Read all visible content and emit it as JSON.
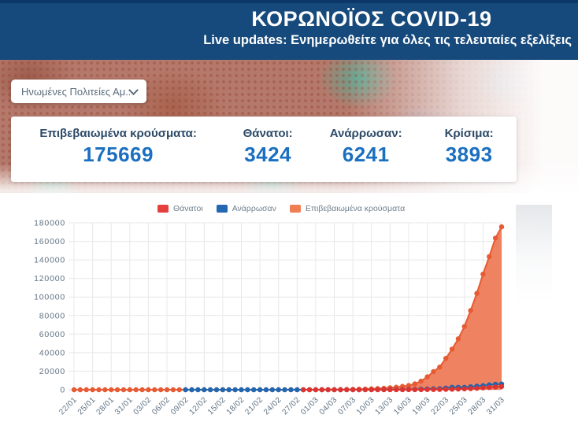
{
  "header": {
    "title": "ΚΟΡΩΝΟΪΟΣ COVID-19",
    "subtitle": "Live updates: Ενημερωθείτε για όλες τις τελευταίες εξελίξεις"
  },
  "country_select": {
    "value": "Ηνωμένες Πολιτείες Αμ..."
  },
  "stats": [
    {
      "label": "Επιβεβαιωμένα κρούσματα:",
      "value": "175669"
    },
    {
      "label": "Θάνατοι:",
      "value": "3424"
    },
    {
      "label": "Ανάρρωσαν:",
      "value": "6241"
    },
    {
      "label": "Κρίσιμα:",
      "value": "3893"
    }
  ],
  "colors": {
    "header_navy": "#174a7c",
    "header_navy_dark": "#0d3766",
    "stat_label": "#2c4a67",
    "stat_value": "#1a6fc0",
    "deaths_red": "#dc3430",
    "recovered_blue": "#2166ae",
    "confirmed_orange_line": "#e65b33",
    "confirmed_orange_fill": "#ee7e5b",
    "grid": "#e8e8e8",
    "axis_text": "#5e7182"
  },
  "chart_data": {
    "type": "area",
    "title": "",
    "points_total": 70,
    "date_range": [
      "22/01",
      "31/03"
    ],
    "ylim": [
      0,
      180000
    ],
    "y_tick_step": 20000,
    "grid": true,
    "legend_position": "top",
    "x_tick_labels": [
      "22/01",
      "25/01",
      "28/01",
      "31/01",
      "03/02",
      "06/02",
      "09/02",
      "12/02",
      "15/02",
      "18/02",
      "21/02",
      "24/02",
      "27/02",
      "01/03",
      "04/03",
      "07/03",
      "10/03",
      "13/03",
      "16/03",
      "19/03",
      "22/03",
      "25/03",
      "28/03",
      "31/03"
    ],
    "x_ticks_every_n_points": 3,
    "legend": [
      {
        "name": "Θάνατοι",
        "color": "#e4403e"
      },
      {
        "name": "Ανάρρωσαν",
        "color": "#2368b1"
      },
      {
        "name": "Επιβεβαιωμένα κρούσματα",
        "color": "#ef7e55"
      }
    ],
    "series": [
      {
        "name": "Επιβεβαιωμένα κρούσματα",
        "color": "#e65b33",
        "fill": "#ee7e5b",
        "start_index": 0,
        "values": [
          1,
          1,
          2,
          2,
          5,
          5,
          5,
          5,
          5,
          7,
          8,
          8,
          11,
          11,
          11,
          12,
          12,
          12,
          12,
          12,
          13,
          13,
          13,
          13,
          13,
          13,
          13,
          13,
          15,
          15,
          15,
          35,
          35,
          35,
          35,
          59,
          59,
          60,
          68,
          75,
          100,
          124,
          158,
          221,
          319,
          435,
          541,
          704,
          994,
          1301,
          1630,
          2183,
          2771,
          3617,
          4604,
          6357,
          9317,
          13898,
          19551,
          24418,
          33840,
          43781,
          54881,
          68211,
          85435,
          103942,
          124665,
          143532,
          163539,
          175669
        ]
      },
      {
        "name": "Ανάρρωσαν",
        "color": "#2166ae",
        "start_index": 18,
        "values": [
          3,
          3,
          3,
          3,
          3,
          5,
          5,
          5,
          6,
          6,
          6,
          7,
          7,
          7,
          7,
          8,
          8,
          8,
          8,
          8,
          8,
          8,
          8,
          9,
          10,
          12,
          12,
          12,
          12,
          15,
          17,
          105,
          121,
          147,
          176,
          178,
          348,
          361,
          681,
          869,
          1072,
          1187,
          1868,
          2665,
          2665,
          2665,
          3231,
          3873,
          4435,
          5301,
          5945,
          6241
        ]
      },
      {
        "name": "Θάνατοι",
        "color": "#dc3430",
        "start_index": 37,
        "values": [
          1,
          1,
          1,
          6,
          7,
          11,
          12,
          14,
          17,
          21,
          22,
          28,
          36,
          40,
          47,
          54,
          63,
          85,
          108,
          118,
          200,
          244,
          307,
          417,
          557,
          706,
          942,
          1209,
          1581,
          2026,
          2467,
          2978,
          3424
        ]
      }
    ]
  }
}
